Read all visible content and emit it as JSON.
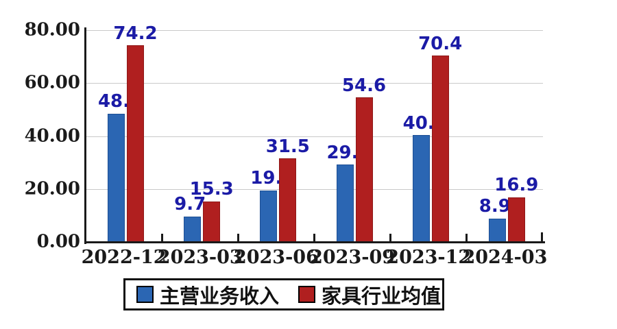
{
  "chart_data": {
    "type": "bar",
    "title": "",
    "categories": [
      "2022-12",
      "2023-03",
      "2023-06",
      "2023-09",
      "2023-12",
      "2024-03"
    ],
    "series": [
      {
        "name": "主营业务收入",
        "color": "#2b66b3",
        "edge_color": "#1d4f94",
        "values": [
          48.5,
          9.7,
          19.4,
          29.2,
          40.3,
          8.9
        ],
        "point_labels": [
          "48.",
          "9.7",
          "19.",
          "29.",
          "40.",
          "8.9"
        ]
      },
      {
        "name": "家具行业均值",
        "color": "#b01f1f",
        "edge_color": "#8e1717",
        "values": [
          74.2,
          15.3,
          31.5,
          54.6,
          70.4,
          16.9
        ],
        "point_labels": [
          "74.2",
          "15.3",
          "31.5",
          "54.6",
          "70.4",
          "16.9"
        ]
      }
    ],
    "ylim": [
      0,
      80
    ],
    "yticks": [
      {
        "value": 0,
        "label": "0.00"
      },
      {
        "value": 20,
        "label": "20.00"
      },
      {
        "value": 40,
        "label": "40.00"
      },
      {
        "value": 60,
        "label": "60.00"
      },
      {
        "value": 80,
        "label": "80.00"
      }
    ],
    "xlabel": "",
    "ylabel": "",
    "grid": "horizontal",
    "legend_position": "bottom",
    "colors": {
      "value_label": "#1b1ba6",
      "axis": "#1a1a1a",
      "gridline": "#c9c9c9",
      "background": "#ffffff",
      "tick_label": "#1a1a1a"
    }
  }
}
